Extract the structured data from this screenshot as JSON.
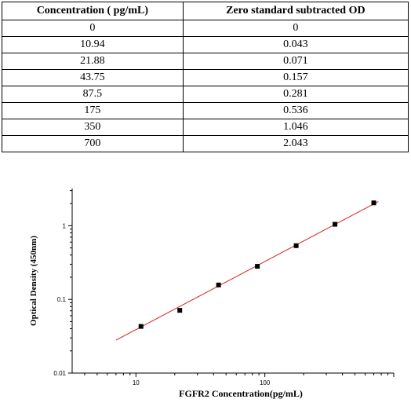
{
  "table": {
    "headers": [
      "Concentration ( pg/mL)",
      "Zero standard subtracted OD"
    ],
    "rows": [
      [
        "0",
        "0"
      ],
      [
        "10.94",
        "0.043"
      ],
      [
        "21.88",
        "0.071"
      ],
      [
        "43.75",
        "0.157"
      ],
      [
        "87.5",
        "0.281"
      ],
      [
        "175",
        "0.536"
      ],
      [
        "350",
        "1.046"
      ],
      [
        "700",
        "2.043"
      ]
    ]
  },
  "chart_data": {
    "type": "scatter",
    "title": "",
    "xlabel": "FGFR2  Concentration(pg/mL)",
    "ylabel": "Optical Density (450nm)",
    "xscale": "log",
    "yscale": "log",
    "xlim": [
      3.2,
      1000
    ],
    "ylim": [
      0.01,
      3.2
    ],
    "xticks": [
      10,
      100
    ],
    "xtick_labels": [
      "10",
      "100"
    ],
    "yticks": [
      0.01,
      0.1,
      1
    ],
    "ytick_labels": [
      "0.01",
      "0.1",
      "1"
    ],
    "grid": false,
    "series": [
      {
        "x": [
          10.94,
          21.88,
          43.75,
          87.5,
          175,
          350,
          700
        ],
        "y": [
          0.043,
          0.071,
          0.157,
          0.281,
          0.536,
          1.046,
          2.043
        ],
        "marker": "square",
        "color": "#000000"
      }
    ],
    "fit_line": {
      "x": [
        7,
        760
      ],
      "y": [
        0.028,
        2.13
      ],
      "color": "#d42020"
    }
  }
}
